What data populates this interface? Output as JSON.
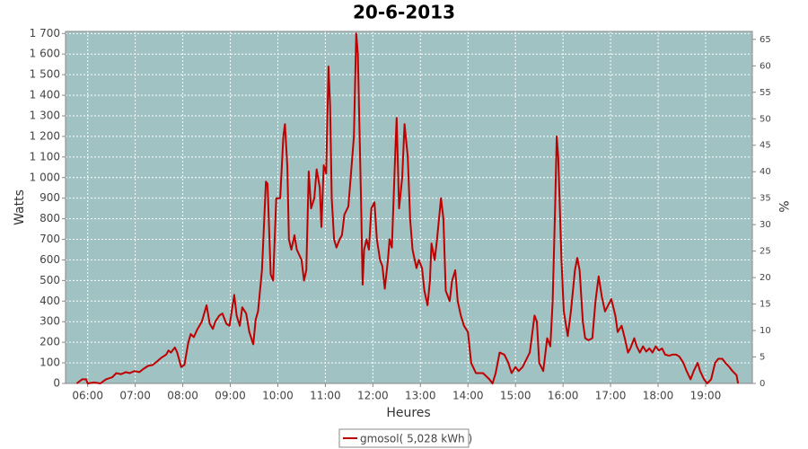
{
  "chart_data": {
    "type": "line",
    "title": "20-6-2013",
    "x_label": "Heures",
    "y_label": "Watts",
    "y2_label": "%",
    "xlim": [
      "05:32",
      "19:59"
    ],
    "xticks": [
      "06:00",
      "07:00",
      "08:00",
      "09:00",
      "10:00",
      "11:00",
      "12:00",
      "13:00",
      "14:00",
      "15:00",
      "16:00",
      "17:00",
      "18:00",
      "19:00"
    ],
    "ylim": [
      0,
      1710
    ],
    "yticks": [
      0,
      100,
      200,
      300,
      400,
      500,
      600,
      700,
      800,
      900,
      {
        "value": 1000,
        "label": "1 000"
      },
      {
        "value": 1100,
        "label": "1 100"
      },
      {
        "value": 1200,
        "label": "1 200"
      },
      {
        "value": 1300,
        "label": "1 300"
      },
      {
        "value": 1400,
        "label": "1 400"
      },
      {
        "value": 1500,
        "label": "1 500"
      },
      {
        "value": 1600,
        "label": "1 600"
      },
      {
        "value": 1700,
        "label": "1 700"
      }
    ],
    "y2lim": [
      0,
      66.5
    ],
    "y2ticks": [
      0,
      5,
      10,
      15,
      20,
      25,
      30,
      35,
      40,
      45,
      50,
      55,
      60,
      65
    ],
    "grid": true,
    "background": "#a0c2c2",
    "legend": "bottom",
    "x": [
      "05:46",
      "05:53",
      "05:58",
      "06:00",
      "06:08",
      "06:16",
      "06:23",
      "06:31",
      "06:36",
      "06:42",
      "06:48",
      "06:53",
      "06:59",
      "07:05",
      "07:10",
      "07:16",
      "07:22",
      "07:27",
      "07:33",
      "07:39",
      "07:42",
      "07:45",
      "07:50",
      "07:53",
      "07:58",
      "08:02",
      "08:07",
      "08:10",
      "08:14",
      "08:18",
      "08:24",
      "08:30",
      "08:34",
      "08:38",
      "08:41",
      "08:46",
      "08:50",
      "08:55",
      "08:59",
      "09:01",
      "09:05",
      "09:08",
      "09:12",
      "09:15",
      "09:20",
      "09:24",
      "09:29",
      "09:32",
      "09:35",
      "09:40",
      "09:45",
      "09:47",
      "09:51",
      "09:54",
      "09:58",
      "10:03",
      "10:07",
      "10:09",
      "10:12",
      "10:14",
      "10:17",
      "10:21",
      "10:24",
      "10:30",
      "10:33",
      "10:36",
      "10:39",
      "10:42",
      "10:46",
      "10:49",
      "10:53",
      "10:55",
      "10:58",
      "11:01",
      "11:04",
      "11:06",
      "11:08",
      "11:11",
      "11:14",
      "11:18",
      "11:21",
      "11:24",
      "11:29",
      "11:32",
      "11:36",
      "11:39",
      "11:41",
      "11:45",
      "11:47",
      "11:49",
      "11:52",
      "11:55",
      "11:58",
      "12:02",
      "12:05",
      "12:09",
      "12:12",
      "12:15",
      "12:19",
      "12:21",
      "12:24",
      "12:28",
      "12:30",
      "12:33",
      "12:37",
      "12:40",
      "12:44",
      "12:47",
      "12:50",
      "12:55",
      "12:58",
      "13:02",
      "13:05",
      "13:09",
      "13:12",
      "13:14",
      "13:18",
      "13:21",
      "13:26",
      "13:29",
      "13:32",
      "13:37",
      "13:40",
      "13:44",
      "13:47",
      "13:51",
      "13:55",
      "14:00",
      "14:04",
      "14:10",
      "14:19",
      "14:27",
      "14:31",
      "14:35",
      "14:40",
      "14:46",
      "14:51",
      "14:55",
      "15:00",
      "15:04",
      "15:09",
      "15:18",
      "15:24",
      "15:27",
      "15:30",
      "15:35",
      "15:40",
      "15:44",
      "15:47",
      "15:50",
      "15:52",
      "15:54",
      "15:58",
      "16:01",
      "16:06",
      "16:10",
      "16:15",
      "16:18",
      "16:21",
      "16:25",
      "16:28",
      "16:32",
      "16:37",
      "16:41",
      "16:45",
      "16:49",
      "16:53",
      "16:57",
      "17:01",
      "17:06",
      "17:09",
      "17:14",
      "17:18",
      "17:22",
      "17:25",
      "17:30",
      "17:33",
      "17:37",
      "17:41",
      "17:45",
      "17:49",
      "17:53",
      "17:57",
      "18:01",
      "18:05",
      "18:09",
      "18:14",
      "18:18",
      "18:23",
      "18:27",
      "18:32",
      "18:36",
      "18:41",
      "18:45",
      "18:50",
      "18:53",
      "18:58",
      "19:02",
      "19:07",
      "19:12",
      "19:16",
      "19:21",
      "19:25",
      "19:30",
      "19:34",
      "19:39",
      "19:41"
    ],
    "series": [
      {
        "name": "gmosol( 5,028 kWh )",
        "color": "#c00000",
        "values": [
          0,
          20,
          20,
          0,
          5,
          0,
          20,
          30,
          50,
          45,
          55,
          50,
          60,
          55,
          70,
          85,
          90,
          105,
          125,
          140,
          160,
          150,
          175,
          150,
          80,
          90,
          200,
          240,
          225,
          260,
          300,
          380,
          290,
          265,
          300,
          330,
          340,
          290,
          280,
          330,
          430,
          330,
          280,
          370,
          340,
          250,
          190,
          310,
          350,
          550,
          980,
          970,
          530,
          500,
          900,
          900,
          1200,
          1260,
          1050,
          700,
          650,
          720,
          650,
          600,
          500,
          550,
          1030,
          850,
          900,
          1040,
          950,
          760,
          1060,
          1020,
          1540,
          1350,
          900,
          700,
          660,
          700,
          720,
          820,
          860,
          1000,
          1200,
          1700,
          1600,
          900,
          480,
          650,
          700,
          650,
          850,
          880,
          700,
          600,
          570,
          460,
          600,
          700,
          660,
          1100,
          1290,
          850,
          1000,
          1260,
          1100,
          800,
          650,
          560,
          600,
          560,
          450,
          380,
          500,
          680,
          600,
          700,
          900,
          800,
          450,
          400,
          500,
          550,
          400,
          330,
          280,
          250,
          100,
          50,
          50,
          20,
          0,
          50,
          150,
          140,
          100,
          50,
          80,
          60,
          80,
          150,
          330,
          300,
          100,
          60,
          220,
          180,
          400,
          850,
          1200,
          1100,
          600,
          350,
          230,
          350,
          550,
          610,
          550,
          300,
          220,
          210,
          220,
          400,
          520,
          420,
          350,
          380,
          410,
          330,
          250,
          280,
          220,
          150,
          170,
          220,
          180,
          150,
          180,
          155,
          170,
          150,
          180,
          160,
          170,
          140,
          135,
          140,
          140,
          130,
          100,
          60,
          20,
          60,
          100,
          60,
          20,
          0,
          20,
          100,
          120,
          120,
          100,
          80,
          60,
          40,
          0
        ]
      }
    ]
  }
}
